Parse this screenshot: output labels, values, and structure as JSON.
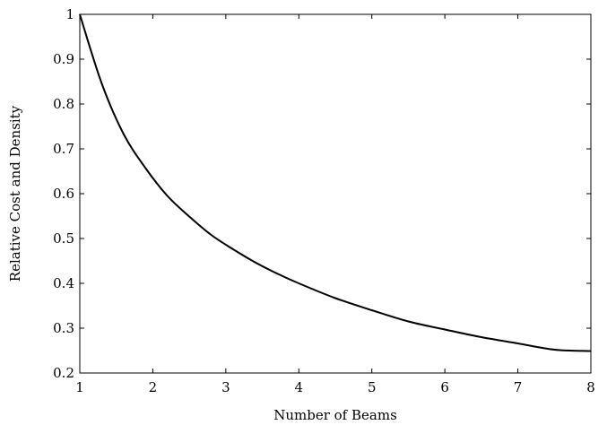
{
  "chart_data": {
    "type": "line",
    "xlabel": "Number of Beams",
    "ylabel": "Relative Cost and Density",
    "xlim": [
      1,
      8
    ],
    "ylim": [
      0.2,
      1
    ],
    "xticks": [
      1,
      2,
      3,
      4,
      5,
      6,
      7,
      8
    ],
    "yticks": [
      0.2,
      0.3,
      0.4,
      0.5,
      0.6,
      0.7,
      0.8,
      0.9,
      1
    ],
    "xtick_labels": [
      "1",
      "2",
      "3",
      "4",
      "5",
      "6",
      "7",
      "8"
    ],
    "ytick_labels": [
      "0.2",
      "0.3",
      "0.4",
      "0.5",
      "0.6",
      "0.7",
      "0.8",
      "0.9",
      "1"
    ],
    "grid": false,
    "legend": "none",
    "line_color": "#000000",
    "series": [
      {
        "x": [
          1,
          1.3,
          1.6,
          1.9,
          2.2,
          2.5,
          2.8,
          3.1,
          3.4,
          3.7,
          4,
          4.5,
          5,
          5.5,
          6,
          6.5,
          7,
          7.5,
          8
        ],
        "y": [
          1,
          0.846,
          0.733,
          0.657,
          0.595,
          0.549,
          0.508,
          0.476,
          0.447,
          0.422,
          0.4,
          0.367,
          0.34,
          0.315,
          0.297,
          0.28,
          0.266,
          0.252,
          0.249
        ]
      }
    ]
  }
}
